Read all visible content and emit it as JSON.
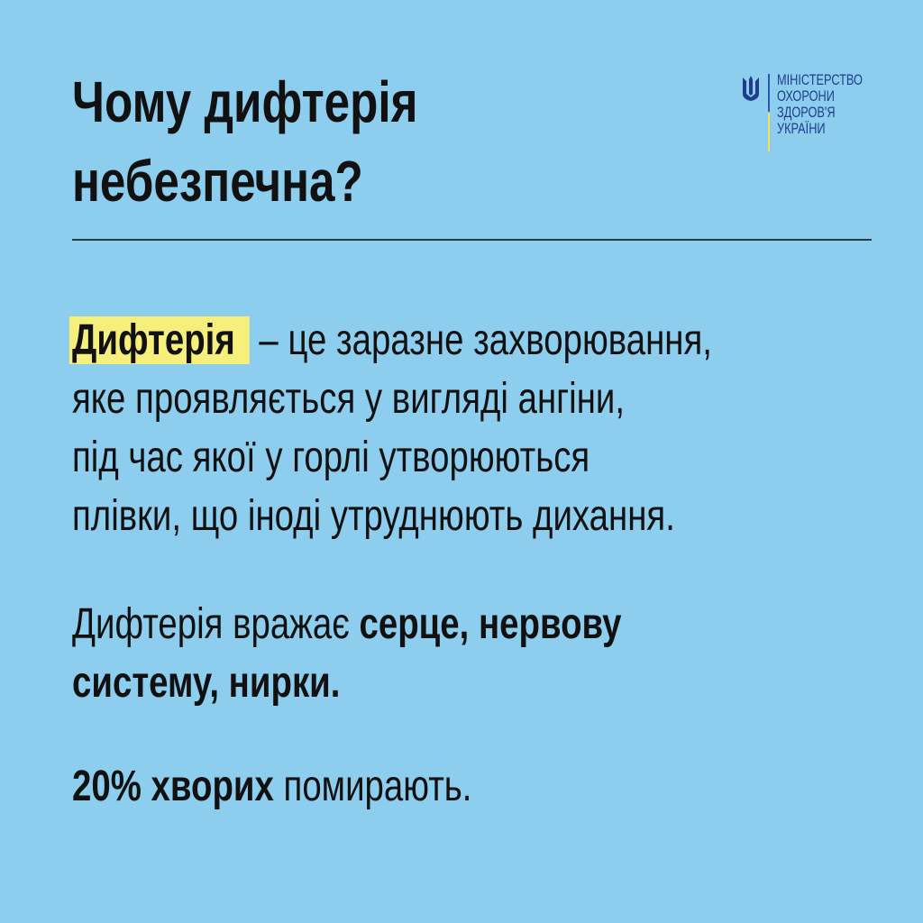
{
  "title": {
    "line1": "Чому дифтерія",
    "line2": "небезпечна?"
  },
  "logo": {
    "lines": [
      "МІНІСТЕРСТВО",
      "ОХОРОНИ",
      "ЗДОРОВ'Я",
      "УКРАЇНИ"
    ],
    "icon": "trident-icon",
    "colors": {
      "blue": "#2c55b5",
      "yellow": "#f4e15a"
    }
  },
  "paragraph1": {
    "highlight": "Дифтерія",
    "line1_rest": "– це заразне захворювання,",
    "line2": "яке проявляється у вигляді ангіни,",
    "line3": "під час якої у горлі утворюються",
    "line4": "плівки, що іноді утруднюють дихання."
  },
  "paragraph2": {
    "line1_normal": "Дифтерія вражає ",
    "line1_bold": "серце, нервову",
    "line2_bold": "систему, нирки."
  },
  "paragraph3": {
    "bold": "20% хворих",
    "normal": " помирають."
  },
  "colors": {
    "background": "#8dcdee",
    "highlight": "#f6ef7b"
  }
}
